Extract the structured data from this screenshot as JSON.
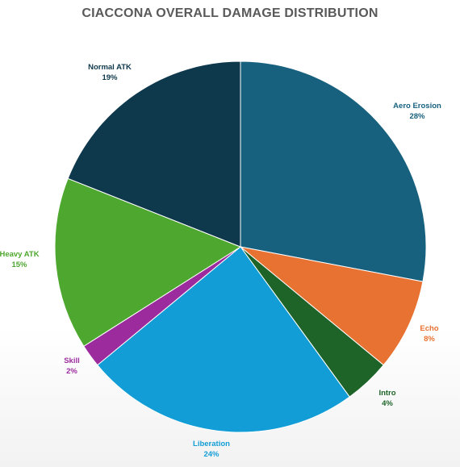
{
  "chart_data": {
    "type": "pie",
    "title": "CIACCONA OVERALL DAMAGE DISTRIBUTION",
    "start_angle_deg": 0,
    "direction": "clockwise",
    "slices": [
      {
        "name": "Aero Erosion",
        "value": 28,
        "label": "28%",
        "color": "#17617f"
      },
      {
        "name": "Echo",
        "value": 8,
        "label": "8%",
        "color": "#e87232"
      },
      {
        "name": "Intro",
        "value": 4,
        "label": "4%",
        "color": "#1e6429"
      },
      {
        "name": "Liberation",
        "value": 24,
        "label": "24%",
        "color": "#129dd6"
      },
      {
        "name": "Skill",
        "value": 2,
        "label": "2%",
        "color": "#9c2c9d"
      },
      {
        "name": "Heavy ATK",
        "value": 15,
        "label": "15%",
        "color": "#4ea72e"
      },
      {
        "name": "Normal ATK",
        "value": 19,
        "label": "19%",
        "color": "#0e384c"
      }
    ],
    "label_colors": {
      "Aero Erosion": "#17617f",
      "Echo": "#e87232",
      "Intro": "#1e6429",
      "Liberation": "#129dd6",
      "Skill": "#9c2c9d",
      "Heavy ATK": "#4ea72e",
      "Normal ATK": "#0e384c"
    }
  }
}
